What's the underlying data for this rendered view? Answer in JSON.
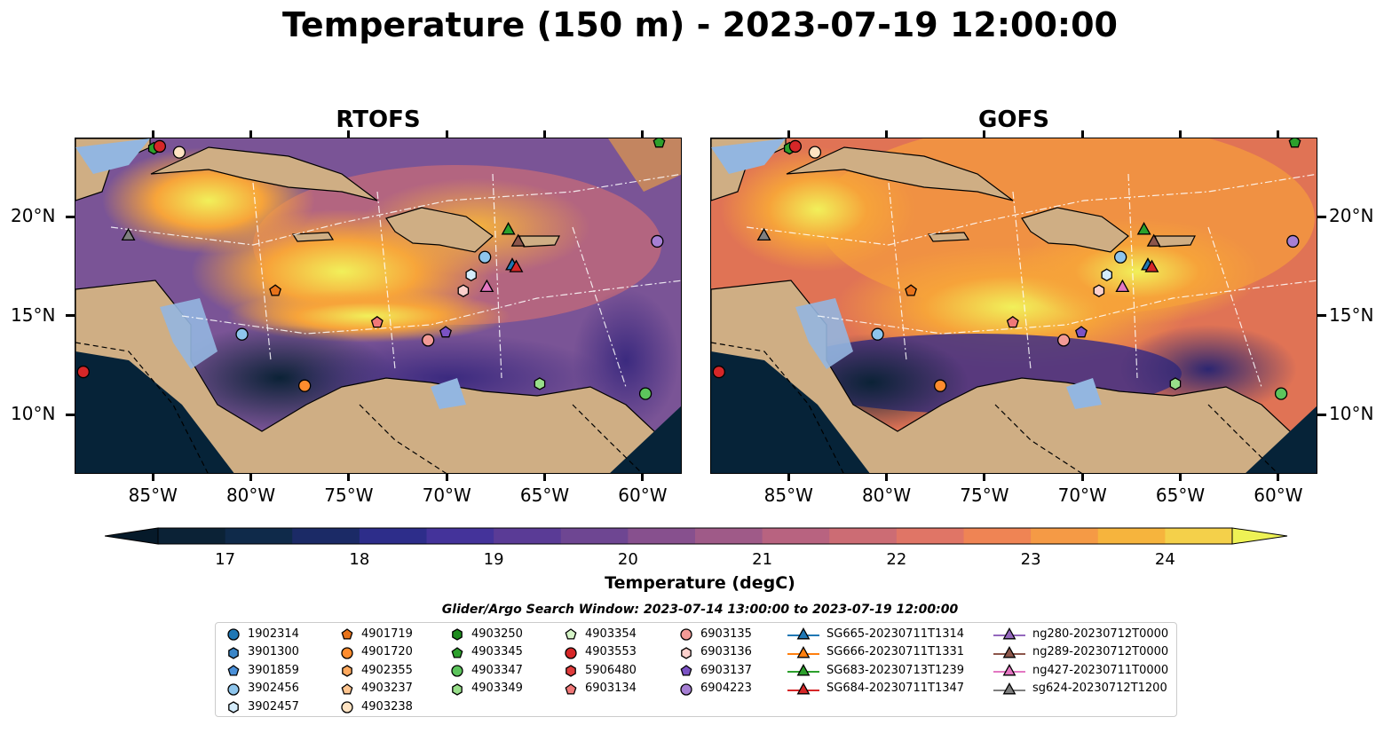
{
  "title": "Temperature (150 m) - 2023-07-19 12:00:00",
  "panels": [
    {
      "title": "RTOFS"
    },
    {
      "title": "GOFS"
    }
  ],
  "axes": {
    "lon_labels": [
      "85°W",
      "80°W",
      "75°W",
      "70°W",
      "65°W",
      "60°W"
    ],
    "lat_labels": [
      "20°N",
      "15°N",
      "10°N"
    ],
    "lon_range": [
      -89,
      -58
    ],
    "lat_range": [
      7,
      24
    ]
  },
  "colorbar": {
    "label": "Temperature (degC)",
    "ticks": [
      "17",
      "18",
      "19",
      "20",
      "21",
      "22",
      "23",
      "24"
    ],
    "range": [
      16.5,
      24.5
    ],
    "extend": "both"
  },
  "search_window": "Glider/Argo Search Window: 2023-07-14 13:00:00 to 2023-07-19 12:00:00",
  "legend": {
    "columns": [
      [
        {
          "label": "1902314",
          "shape": "circle",
          "color": "#1f77b4"
        },
        {
          "label": "3901300",
          "shape": "hexagon",
          "color": "#3a86c8"
        },
        {
          "label": "3901859",
          "shape": "pentagon",
          "color": "#4a90d9"
        },
        {
          "label": "3902456",
          "shape": "circle",
          "color": "#8ec5ec"
        },
        {
          "label": "3902457",
          "shape": "hexagon",
          "color": "#d4ecfb"
        }
      ],
      [
        {
          "label": "4901719",
          "shape": "pentagon",
          "color": "#e8731a"
        },
        {
          "label": "4901720",
          "shape": "circle",
          "color": "#ff8c2e"
        },
        {
          "label": "4902355",
          "shape": "hexagon",
          "color": "#ffa95e"
        },
        {
          "label": "4903237",
          "shape": "pentagon",
          "color": "#ffc58f"
        },
        {
          "label": "4903238",
          "shape": "circle",
          "color": "#ffe3c2"
        }
      ],
      [
        {
          "label": "4903250",
          "shape": "hexagon",
          "color": "#1e8c1e"
        },
        {
          "label": "4903345",
          "shape": "pentagon",
          "color": "#2ca02c"
        },
        {
          "label": "4903347",
          "shape": "circle",
          "color": "#5cc45c"
        },
        {
          "label": "4903349",
          "shape": "hexagon",
          "color": "#98df8a"
        }
      ],
      [
        {
          "label": "4903354",
          "shape": "pentagon",
          "color": "#d6f5c8"
        },
        {
          "label": "4903553",
          "shape": "circle",
          "color": "#d62728"
        },
        {
          "label": "5906480",
          "shape": "hexagon",
          "color": "#e03c3c"
        },
        {
          "label": "6903134",
          "shape": "pentagon",
          "color": "#f07878"
        }
      ],
      [
        {
          "label": "6903135",
          "shape": "circle",
          "color": "#f29a96"
        },
        {
          "label": "6903136",
          "shape": "hexagon",
          "color": "#fcd0cc"
        },
        {
          "label": "6903137",
          "shape": "pentagon",
          "color": "#7b52c4"
        },
        {
          "label": "6904223",
          "shape": "circle",
          "color": "#a67fd4"
        }
      ],
      [
        {
          "label": "SG665-20230711T1314",
          "shape": "triangle",
          "color": "#1f77b4"
        },
        {
          "label": "SG666-20230711T1331",
          "shape": "triangle",
          "color": "#ff7f0e"
        },
        {
          "label": "SG683-20230713T1239",
          "shape": "triangle",
          "color": "#2ca02c"
        },
        {
          "label": "SG684-20230711T1347",
          "shape": "triangle",
          "color": "#d62728"
        }
      ],
      [
        {
          "label": "ng280-20230712T0000",
          "shape": "triangle",
          "color": "#9467bd"
        },
        {
          "label": "ng289-20230712T0000",
          "shape": "triangle",
          "color": "#8c564b"
        },
        {
          "label": "ng427-20230711T0000",
          "shape": "triangle",
          "color": "#e377c2"
        },
        {
          "label": "sg624-20230712T1200",
          "shape": "triangle",
          "color": "#7f7f7f"
        }
      ]
    ]
  },
  "markers": [
    {
      "lon": -85.0,
      "lat": 23.5,
      "shape": "hexagon",
      "color": "#2ca02c"
    },
    {
      "lon": -84.7,
      "lat": 23.6,
      "shape": "circle",
      "color": "#d62728"
    },
    {
      "lon": -83.7,
      "lat": 23.3,
      "shape": "circle",
      "color": "#ffe3c2"
    },
    {
      "lon": -59.2,
      "lat": 23.8,
      "shape": "pentagon",
      "color": "#2ca02c"
    },
    {
      "lon": -86.3,
      "lat": 19.1,
      "shape": "triangle",
      "color": "#7f7f7f"
    },
    {
      "lon": -78.8,
      "lat": 16.3,
      "shape": "pentagon",
      "color": "#e8731a"
    },
    {
      "lon": -80.5,
      "lat": 14.1,
      "shape": "circle",
      "color": "#8ec5ec"
    },
    {
      "lon": -88.6,
      "lat": 12.2,
      "shape": "circle",
      "color": "#d62728"
    },
    {
      "lon": -77.3,
      "lat": 11.5,
      "shape": "circle",
      "color": "#ff8c2e"
    },
    {
      "lon": -73.6,
      "lat": 14.7,
      "shape": "pentagon",
      "color": "#f07878"
    },
    {
      "lon": -71.0,
      "lat": 13.8,
      "shape": "circle",
      "color": "#f29a96"
    },
    {
      "lon": -70.1,
      "lat": 14.2,
      "shape": "pentagon",
      "color": "#7b52c4"
    },
    {
      "lon": -69.2,
      "lat": 16.3,
      "shape": "hexagon",
      "color": "#fcd0cc"
    },
    {
      "lon": -68.8,
      "lat": 17.1,
      "shape": "hexagon",
      "color": "#d4ecfb"
    },
    {
      "lon": -68.1,
      "lat": 18.0,
      "shape": "circle",
      "color": "#8ec5ec"
    },
    {
      "lon": -68.0,
      "lat": 16.5,
      "shape": "triangle",
      "color": "#e377c2"
    },
    {
      "lon": -66.9,
      "lat": 19.4,
      "shape": "triangle",
      "color": "#2ca02c"
    },
    {
      "lon": -66.7,
      "lat": 17.6,
      "shape": "triangle",
      "color": "#1f77b4"
    },
    {
      "lon": -66.5,
      "lat": 17.5,
      "shape": "triangle",
      "color": "#d62728"
    },
    {
      "lon": -66.4,
      "lat": 18.8,
      "shape": "triangle",
      "color": "#8c564b"
    },
    {
      "lon": -65.3,
      "lat": 11.6,
      "shape": "hexagon",
      "color": "#98df8a"
    },
    {
      "lon": -59.9,
      "lat": 11.1,
      "shape": "circle",
      "color": "#5cc45c"
    },
    {
      "lon": -59.3,
      "lat": 18.8,
      "shape": "circle",
      "color": "#a67fd4"
    }
  ]
}
